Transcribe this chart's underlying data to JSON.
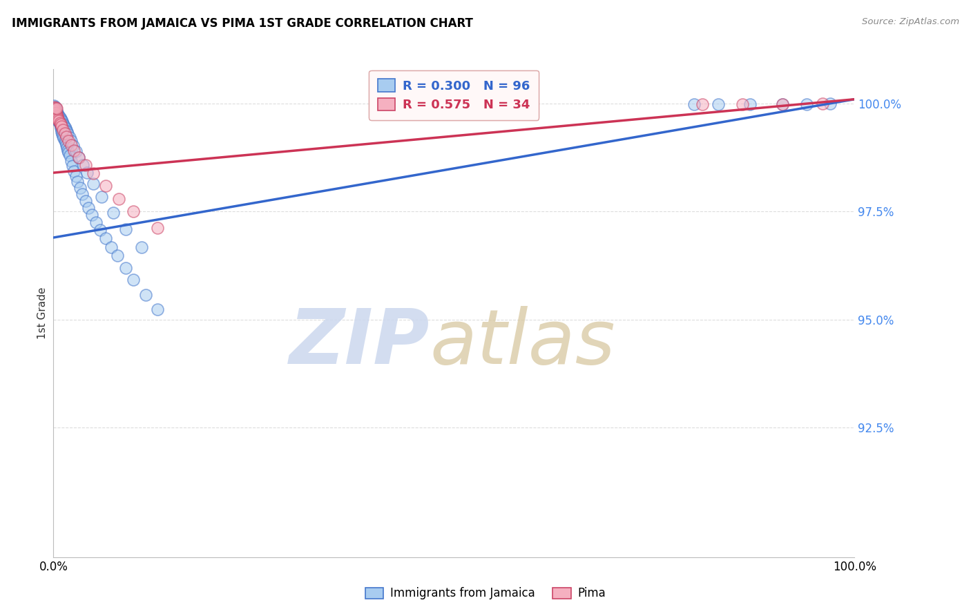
{
  "title": "IMMIGRANTS FROM JAMAICA VS PIMA 1ST GRADE CORRELATION CHART",
  "source": "Source: ZipAtlas.com",
  "ylabel": "1st Grade",
  "legend_blue_label": "Immigrants from Jamaica",
  "legend_pink_label": "Pima",
  "blue_R": 0.3,
  "blue_N": 96,
  "pink_R": 0.575,
  "pink_N": 34,
  "blue_color": "#A8CCF0",
  "pink_color": "#F5B0C0",
  "blue_edge_color": "#4477CC",
  "pink_edge_color": "#CC4466",
  "blue_line_color": "#3366CC",
  "pink_line_color": "#CC3355",
  "xmin": 0.0,
  "xmax": 1.0,
  "ymin": 0.895,
  "ymax": 1.008,
  "yticks": [
    0.925,
    0.95,
    0.975,
    1.0
  ],
  "ytick_labels": [
    "92.5%",
    "95.0%",
    "97.5%",
    "100.0%"
  ],
  "grid_color": "#dddddd",
  "blue_line_x0": 0.0,
  "blue_line_y0": 0.969,
  "blue_line_x1": 1.0,
  "blue_line_y1": 1.001,
  "pink_line_x0": 0.0,
  "pink_line_y0": 0.984,
  "pink_line_x1": 1.0,
  "pink_line_y1": 1.001,
  "blue_x": [
    0.001,
    0.001,
    0.001,
    0.001,
    0.002,
    0.002,
    0.002,
    0.002,
    0.002,
    0.003,
    0.003,
    0.003,
    0.003,
    0.003,
    0.003,
    0.004,
    0.004,
    0.004,
    0.004,
    0.004,
    0.005,
    0.005,
    0.005,
    0.005,
    0.006,
    0.006,
    0.006,
    0.007,
    0.007,
    0.008,
    0.008,
    0.009,
    0.009,
    0.01,
    0.01,
    0.011,
    0.012,
    0.013,
    0.014,
    0.015,
    0.016,
    0.017,
    0.018,
    0.019,
    0.02,
    0.022,
    0.024,
    0.026,
    0.028,
    0.03,
    0.033,
    0.036,
    0.04,
    0.044,
    0.048,
    0.053,
    0.058,
    0.065,
    0.072,
    0.08,
    0.09,
    0.1,
    0.115,
    0.13,
    0.005,
    0.006,
    0.007,
    0.008,
    0.009,
    0.01,
    0.011,
    0.012,
    0.013,
    0.014,
    0.015,
    0.016,
    0.017,
    0.018,
    0.02,
    0.022,
    0.025,
    0.028,
    0.032,
    0.037,
    0.042,
    0.05,
    0.06,
    0.075,
    0.09,
    0.11,
    0.8,
    0.83,
    0.87,
    0.91,
    0.94,
    0.97
  ],
  "blue_y": [
    0.9995,
    0.999,
    0.9988,
    0.9985,
    0.9992,
    0.9989,
    0.9985,
    0.9983,
    0.998,
    0.9988,
    0.9985,
    0.9982,
    0.9979,
    0.9976,
    0.9973,
    0.9982,
    0.9978,
    0.9975,
    0.9972,
    0.9968,
    0.9975,
    0.9972,
    0.9968,
    0.9964,
    0.9968,
    0.9965,
    0.996,
    0.9962,
    0.9958,
    0.9955,
    0.9952,
    0.9948,
    0.9944,
    0.994,
    0.9935,
    0.993,
    0.9925,
    0.992,
    0.9915,
    0.991,
    0.9904,
    0.9898,
    0.9892,
    0.9886,
    0.988,
    0.9868,
    0.9856,
    0.9844,
    0.9832,
    0.982,
    0.9805,
    0.979,
    0.9775,
    0.9758,
    0.9742,
    0.9725,
    0.9708,
    0.9688,
    0.9668,
    0.9648,
    0.962,
    0.9592,
    0.9558,
    0.9524,
    0.9978,
    0.9975,
    0.9972,
    0.9968,
    0.9965,
    0.9962,
    0.9958,
    0.9954,
    0.995,
    0.9946,
    0.9942,
    0.9938,
    0.9934,
    0.993,
    0.9922,
    0.9914,
    0.9902,
    0.989,
    0.9875,
    0.9858,
    0.984,
    0.9815,
    0.9785,
    0.9748,
    0.971,
    0.9668,
    0.9998,
    0.9998,
    0.9999,
    0.9999,
    0.9999,
    1.0
  ],
  "pink_x": [
    0.001,
    0.001,
    0.002,
    0.002,
    0.003,
    0.003,
    0.004,
    0.004,
    0.005,
    0.005,
    0.006,
    0.007,
    0.008,
    0.009,
    0.01,
    0.012,
    0.014,
    0.016,
    0.019,
    0.022,
    0.026,
    0.032,
    0.04,
    0.05,
    0.065,
    0.082,
    0.1,
    0.13,
    0.003,
    0.004,
    0.81,
    0.86,
    0.91,
    0.96
  ],
  "pink_y": [
    0.9992,
    0.9988,
    0.9985,
    0.9982,
    0.998,
    0.9977,
    0.9975,
    0.9972,
    0.997,
    0.9967,
    0.9964,
    0.996,
    0.9956,
    0.9952,
    0.9948,
    0.994,
    0.9932,
    0.9924,
    0.9914,
    0.9904,
    0.9892,
    0.9876,
    0.9858,
    0.9838,
    0.981,
    0.978,
    0.975,
    0.9712,
    0.999,
    0.9988,
    0.9998,
    0.9999,
    0.9999,
    1.0
  ]
}
